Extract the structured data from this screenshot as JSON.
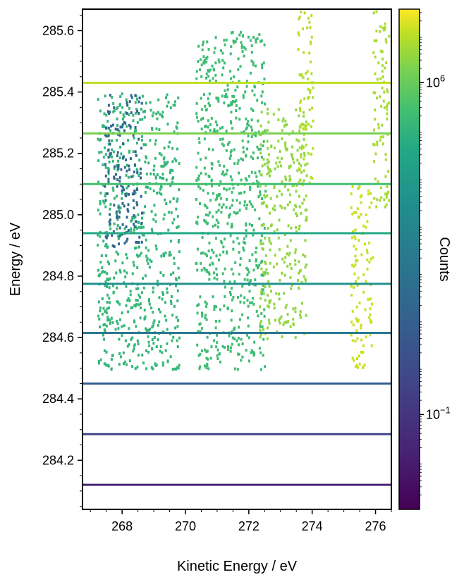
{
  "chart_data": {
    "type": "heatmap",
    "title": "",
    "xlabel": "Kinetic Energy / eV",
    "ylabel": "Energy / eV",
    "xlim": [
      266.75,
      276.5
    ],
    "ylim": [
      284.04,
      285.67
    ],
    "x_ticks": [
      268,
      270,
      272,
      274,
      276
    ],
    "x_tick_labels": [
      "268",
      "270",
      "272",
      "274",
      "276"
    ],
    "y_ticks": [
      284.2,
      284.4,
      284.6,
      284.8,
      285.0,
      285.2,
      285.4,
      285.6
    ],
    "y_tick_labels": [
      "284.2",
      "284.4",
      "284.6",
      "284.8",
      "285.0",
      "285.2",
      "285.4",
      "285.6"
    ],
    "grid": false,
    "colormap": "viridis",
    "colorbar": {
      "label": "Counts",
      "scale": "log",
      "ticks": [
        {
          "base": "10",
          "exponent": "6",
          "value": 1000000
        },
        {
          "base": "10",
          "exponent": "−1",
          "value": 0.1
        }
      ]
    },
    "horizontal_lines": [
      {
        "energy": 285.43,
        "color": "#bddf26"
      },
      {
        "energy": 285.265,
        "color": "#7ad151"
      },
      {
        "energy": 285.1,
        "color": "#44bf70"
      },
      {
        "energy": 284.94,
        "color": "#22a884"
      },
      {
        "energy": 284.775,
        "color": "#21918c"
      },
      {
        "energy": 284.615,
        "color": "#2a788e"
      },
      {
        "energy": 284.45,
        "color": "#355f8d"
      },
      {
        "energy": 284.285,
        "color": "#414487"
      },
      {
        "energy": 284.12,
        "color": "#482475"
      }
    ],
    "scatter_regions": [
      {
        "x_range": [
          267.2,
          269.8
        ],
        "y_range": [
          284.5,
          285.4
        ],
        "color": "#35b779"
      },
      {
        "x_range": [
          267.4,
          268.6
        ],
        "y_range": [
          284.9,
          285.4
        ],
        "color": "#31688e"
      },
      {
        "x_range": [
          270.3,
          272.5
        ],
        "y_range": [
          284.5,
          285.6
        ],
        "color": "#3fbc73"
      },
      {
        "x_range": [
          272.3,
          273.8
        ],
        "y_range": [
          284.6,
          285.35
        ],
        "color": "#90d743"
      },
      {
        "x_range": [
          273.5,
          274.0
        ],
        "y_range": [
          285.1,
          285.67
        ],
        "color": "#b5de2b"
      },
      {
        "x_range": [
          275.2,
          275.9
        ],
        "y_range": [
          284.5,
          285.1
        ],
        "color": "#c8e020"
      },
      {
        "x_range": [
          275.9,
          276.4
        ],
        "y_range": [
          285.0,
          285.67
        ],
        "color": "#a8db34"
      }
    ]
  }
}
